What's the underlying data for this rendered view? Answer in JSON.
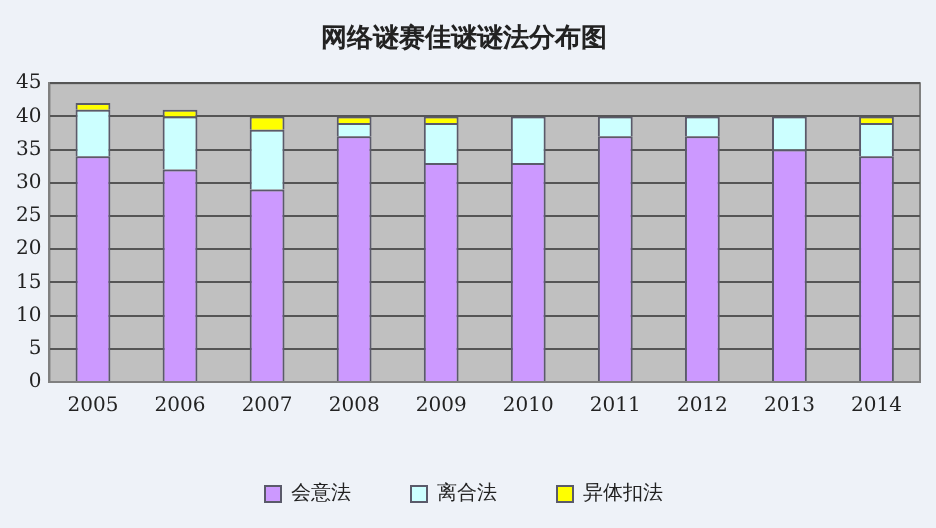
{
  "chart_data": {
    "type": "bar",
    "title": "网络谜赛佳谜谜法分布图",
    "categories": [
      "2005",
      "2006",
      "2007",
      "2008",
      "2009",
      "2010",
      "2011",
      "2012",
      "2013",
      "2014"
    ],
    "series": [
      {
        "name": "会意法",
        "color": "#cc99ff",
        "values": [
          34,
          32,
          29,
          37,
          33,
          33,
          37,
          37,
          35,
          34
        ]
      },
      {
        "name": "离合法",
        "color": "#ccffff",
        "values": [
          7,
          8,
          9,
          2,
          6,
          7,
          3,
          3,
          5,
          5
        ]
      },
      {
        "name": "异体扣法",
        "color": "#ffff00",
        "values": [
          1,
          1,
          2,
          1,
          1,
          0,
          0,
          0,
          0,
          1
        ]
      }
    ],
    "stacked": true,
    "ylim": [
      0,
      45
    ],
    "yticks": [
      0,
      5,
      10,
      15,
      20,
      25,
      30,
      35,
      40,
      45
    ],
    "grid": "y",
    "legend": "bottom"
  }
}
